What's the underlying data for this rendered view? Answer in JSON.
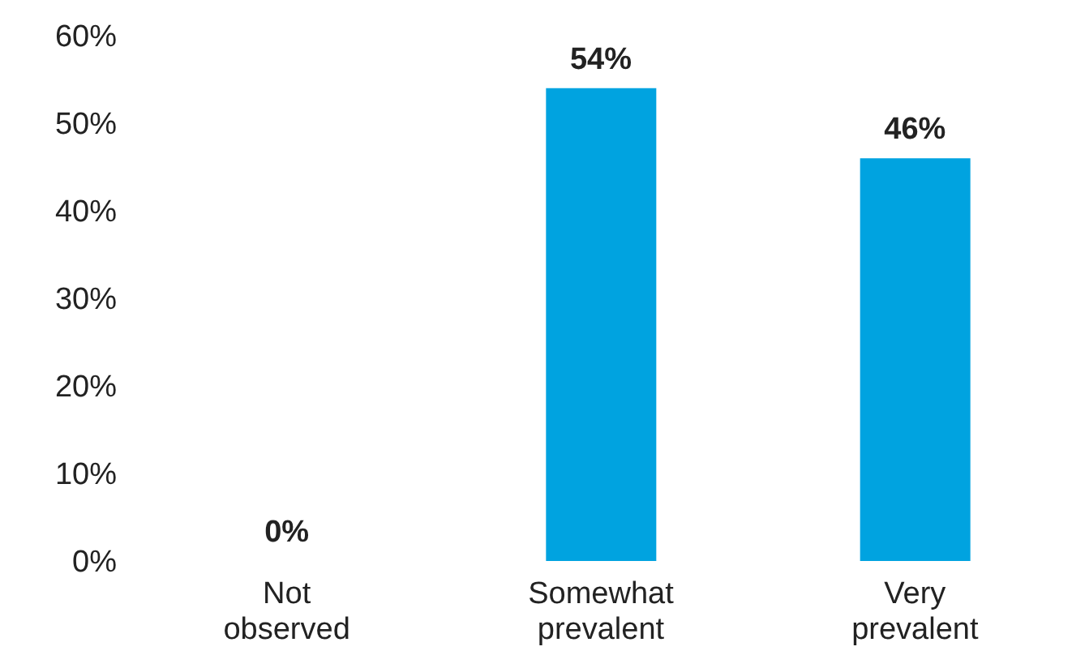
{
  "chart_data": {
    "type": "bar",
    "categories": [
      "Not observed",
      "Somewhat prevalent",
      "Very prevalent"
    ],
    "values": [
      0,
      54,
      46
    ],
    "color": "#00a3e0",
    "ylim": [
      0,
      60
    ],
    "yticks": [
      {
        "value": 0,
        "label": "0%"
      },
      {
        "value": 10,
        "label": "10%"
      },
      {
        "value": 20,
        "label": "20%"
      },
      {
        "value": 30,
        "label": "30%"
      },
      {
        "value": 40,
        "label": "40%"
      },
      {
        "value": 50,
        "label": "50%"
      },
      {
        "value": 60,
        "label": "60%"
      }
    ],
    "value_labels": [
      "0%",
      "54%",
      "46%"
    ],
    "grid": false,
    "legend": false
  }
}
